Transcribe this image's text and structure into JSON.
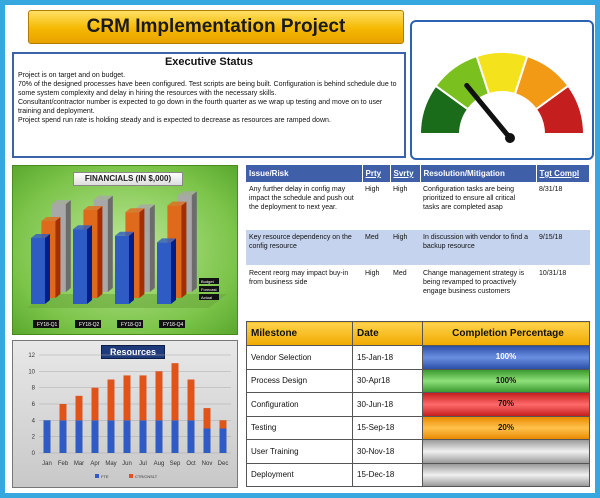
{
  "title": "CRM Implementation Project",
  "executive_status": {
    "heading": "Executive Status",
    "lines": [
      "Project is on target and on budget.",
      "70% of the designed processes have been configured. Test scripts are being built. Configuration is behind schedule due to some system complexity and delay in hiring the resources with the necessary skills.",
      "Consultant/contractor number is expected to go down in the fourth quarter as we wrap up testing and move on to user training and deployment.",
      "Project spend run rate is holding steady and is expected to decrease as resources are ramped down."
    ]
  },
  "gauge": {
    "segments": [
      "#1a6b1a",
      "#7ac01f",
      "#f3e21c",
      "#f29a16",
      "#c41e1e"
    ],
    "level": 0.3
  },
  "financials": {
    "title": "FINANCIALS (IN $,000)",
    "categories": [
      "FY18-Q1",
      "FY18-Q2",
      "FY18-Q3",
      "FY18-Q4"
    ],
    "series": [
      {
        "name": "",
        "color": "#2f5bc4",
        "values": [
          3.0,
          3.4,
          3.1,
          2.8
        ]
      },
      {
        "name": "",
        "color": "#e06a1c",
        "values": [
          3.5,
          4.0,
          3.9,
          4.2
        ]
      },
      {
        "name": "",
        "color": "#a8a8a8",
        "values": [
          4.0,
          4.2,
          3.8,
          4.4
        ]
      }
    ],
    "legend": [
      "Budget",
      "Forecast",
      "Actual"
    ]
  },
  "resources": {
    "title": "Resources",
    "chart_data": {
      "type": "bar",
      "categories": [
        "Jan",
        "Feb",
        "Mar",
        "Apr",
        "May",
        "Jun",
        "Jul",
        "Aug",
        "Sep",
        "Oct",
        "Nov",
        "Dec"
      ],
      "ylim": [
        0,
        12
      ],
      "yticks": [
        "0",
        "2",
        "4",
        "6",
        "8",
        "10",
        "12"
      ],
      "series": [
        {
          "name": "FTE",
          "color": "#2f5bc4",
          "values": [
            4,
            4,
            4,
            4,
            4,
            4,
            4,
            4,
            4,
            4,
            3,
            3
          ]
        },
        {
          "name": "CTR/CNSLT",
          "color": "#e0541c",
          "values": [
            0,
            2,
            3,
            4,
            5,
            5.5,
            5.5,
            6,
            7,
            5,
            2.5,
            1
          ]
        }
      ]
    }
  },
  "risks": {
    "headers": [
      "Issue/Risk",
      "Prty",
      "Svrty",
      "Resolution/Mitigation",
      "Tgt Compl"
    ],
    "rows": [
      [
        "Any further delay in config may impact the schedule and push out the deployment to next year.",
        "High",
        "High",
        "Configuration tasks are being prioritized to ensure all critical tasks are completed asap",
        "8/31/18"
      ],
      [
        "Key resource dependency on the config resource",
        "Med",
        "High",
        "In discussion with vendor to find a backup resource",
        "9/15/18"
      ],
      [
        "Recent reorg may impact buy-in from business side",
        "High",
        "Med",
        "Change management strategy is being revamped to proactively engage business customers",
        "10/31/18"
      ]
    ]
  },
  "milestones": {
    "headers": [
      "Milestone",
      "Date",
      "Completion Percentage"
    ],
    "rows": [
      {
        "name": "Vendor Selection",
        "date": "15-Jan-18",
        "pct": "100%",
        "style": "bar-blue"
      },
      {
        "name": "Process Design",
        "date": "30-Apr18",
        "pct": "100%",
        "style": "bar-green"
      },
      {
        "name": "Configuration",
        "date": "30-Jun-18",
        "pct": "70%",
        "style": "bar-red"
      },
      {
        "name": "Testing",
        "date": "15-Sep-18",
        "pct": "20%",
        "style": "bar-orange"
      },
      {
        "name": "User Training",
        "date": "30-Nov-18",
        "pct": "",
        "style": "bar-grey"
      },
      {
        "name": "Deployment",
        "date": "15-Dec-18",
        "pct": "",
        "style": "bar-grey"
      }
    ]
  }
}
